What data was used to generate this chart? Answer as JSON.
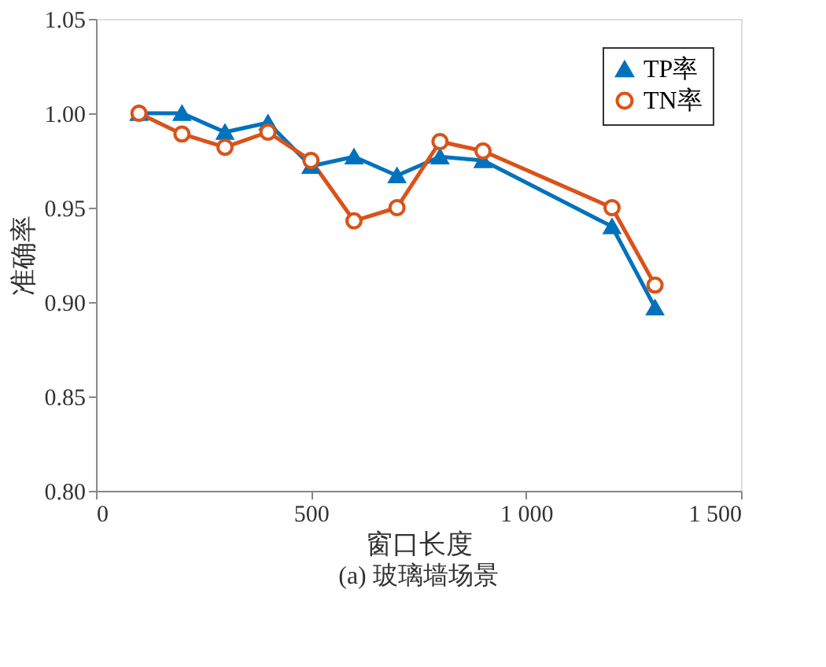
{
  "chart_data": {
    "type": "line",
    "xlabel": "窗口长度",
    "ylabel": "准确率",
    "annotations": [
      "(a) 玻璃墙场景"
    ],
    "x": [
      100,
      200,
      300,
      400,
      500,
      600,
      700,
      800,
      900,
      1200,
      1300
    ],
    "series": [
      {
        "name": "TP率",
        "color": "#0072bd",
        "marker": "triangle",
        "values": [
          1.0,
          1.0,
          0.99,
          0.995,
          0.972,
          0.977,
          0.967,
          0.977,
          0.975,
          0.94,
          0.897
        ]
      },
      {
        "name": "TN率",
        "color": "#d95319",
        "marker": "circle",
        "values": [
          1.0,
          0.989,
          0.982,
          0.99,
          0.975,
          0.943,
          0.95,
          0.985,
          0.98,
          0.95,
          0.909
        ]
      }
    ],
    "xlim": [
      0,
      1500
    ],
    "xticks": [
      0,
      500,
      {
        "value": 1000,
        "label": "1 000"
      },
      {
        "value": 1500,
        "label": "1 500"
      }
    ],
    "ylim": [
      0.8,
      1.05
    ],
    "yticks": [
      {
        "value": 0.8,
        "label": "0.80"
      },
      {
        "value": 0.85,
        "label": "0.85"
      },
      {
        "value": 0.9,
        "label": "0.90"
      },
      {
        "value": 0.95,
        "label": "0.95"
      },
      {
        "value": 1.0,
        "label": "1.00"
      },
      {
        "value": 1.05,
        "label": "1.05"
      }
    ],
    "grid": false,
    "legend": "top right",
    "line_style": "solid"
  }
}
